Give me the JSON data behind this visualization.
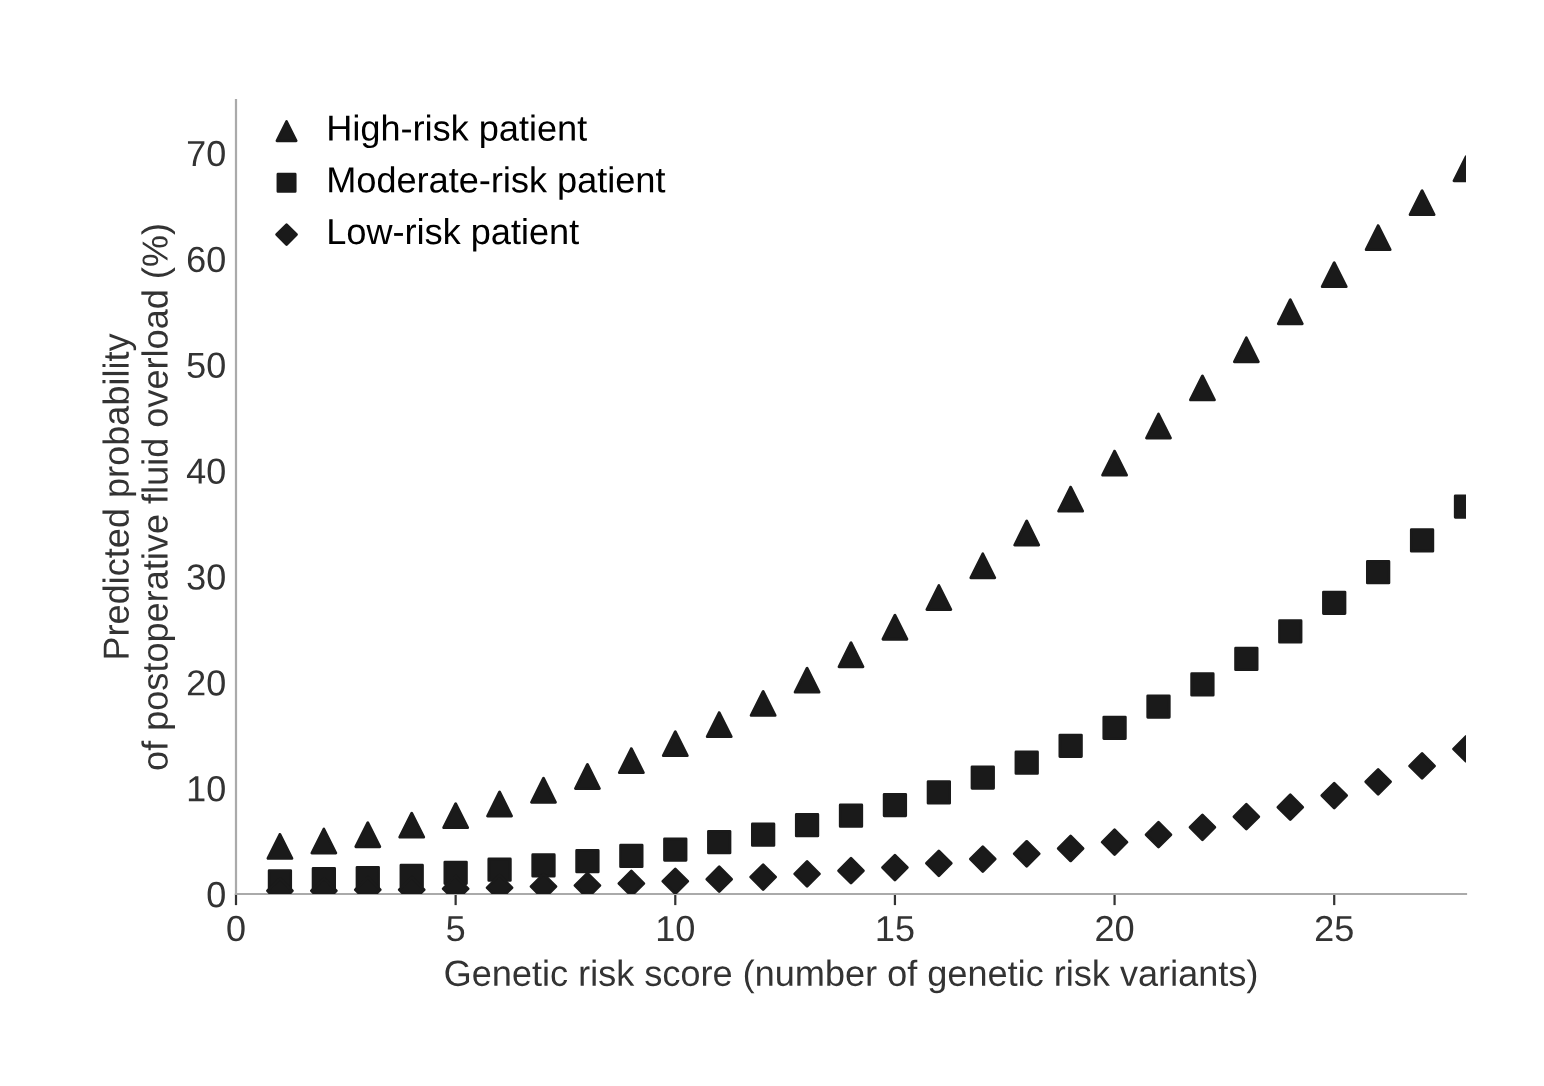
{
  "chart_data": {
    "type": "scatter",
    "xlabel": "Genetic risk score (number of genetic risk variants)",
    "ylabel": "Predicted probability\nof postoperative fluid overload (%)",
    "x": [
      1,
      2,
      3,
      4,
      5,
      6,
      7,
      8,
      9,
      10,
      11,
      12,
      13,
      14,
      15,
      16,
      17,
      18,
      19,
      20,
      21,
      22,
      23,
      24,
      25,
      26,
      27,
      28
    ],
    "series": [
      {
        "name": "High-risk patient",
        "color": "#1a1a1a",
        "marker": "triangle",
        "values": [
          4.5,
          5,
          5.6,
          6.5,
          7.4,
          8.5,
          9.8,
          11.1,
          12.6,
          14.2,
          16,
          18,
          20.2,
          22.6,
          25.2,
          28,
          31,
          34.1,
          37.3,
          40.7,
          44.2,
          47.8,
          51.4,
          55,
          58.5,
          62,
          65.3,
          68.5
        ]
      },
      {
        "name": "Moderate-risk patient",
        "color": "#1a1a1a",
        "marker": "square",
        "values": [
          1.2,
          1.4,
          1.5,
          1.7,
          2.0,
          2.3,
          2.7,
          3.1,
          3.6,
          4.2,
          4.9,
          5.6,
          6.5,
          7.4,
          8.4,
          9.6,
          11,
          12.4,
          14,
          15.7,
          17.7,
          19.8,
          22.2,
          24.8,
          27.5,
          30.4,
          33.4,
          36.6
        ]
      },
      {
        "name": "Low-risk patient",
        "color": "#1a1a1a",
        "marker": "diamond",
        "values": [
          0.3,
          0.3,
          0.4,
          0.4,
          0.5,
          0.6,
          0.7,
          0.8,
          1.0,
          1.2,
          1.4,
          1.6,
          1.9,
          2.2,
          2.5,
          2.9,
          3.3,
          3.8,
          4.3,
          4.9,
          5.6,
          6.3,
          7.3,
          8.2,
          9.3,
          10.6,
          12.1,
          13.7
        ]
      }
    ],
    "xlim": [
      0,
      28
    ],
    "xticks": [
      0,
      5,
      10,
      15,
      20,
      25
    ],
    "ylim": [
      0,
      75
    ],
    "yticks": [
      0,
      10,
      20,
      30,
      40,
      50,
      60,
      70
    ],
    "grid": false,
    "legend": "top left"
  }
}
